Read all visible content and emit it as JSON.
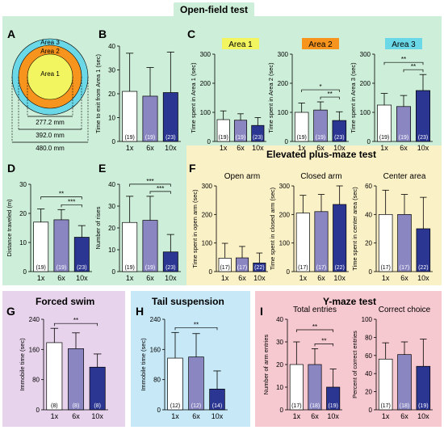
{
  "headers": {
    "open_field": "Open-field test",
    "elevated": "Elevated plus-maze test",
    "forced_swim": "Forced swim",
    "tail_suspension": "Tail suspension",
    "y_maze": "Y-maze test"
  },
  "panel_letters": [
    "A",
    "B",
    "C",
    "D",
    "E",
    "F",
    "G",
    "H",
    "I"
  ],
  "colors": {
    "open_field_bg": "#cdeed8",
    "elevated_bg": "#fbf1c7",
    "forced_swim_bg": "#e8d3ec",
    "tail_bg": "#c6e8f7",
    "ymaze_bg": "#f6c8cf",
    "bar_1x": "#ffffff",
    "bar_6x": "#8a86c2",
    "bar_10x": "#2b3592",
    "area1": "#f2f560",
    "area2": "#f7941d",
    "area3": "#6bd8e8"
  },
  "diagram": {
    "labels": [
      "Area 3",
      "Area 2",
      "Area 1"
    ],
    "dims": [
      "277.2 mm",
      "392.0 mm",
      "480.0 mm"
    ]
  },
  "chart_data": [
    {
      "id": "B",
      "type": "bar",
      "categories": [
        "1x",
        "6x",
        "10x"
      ],
      "values": [
        21,
        19,
        20.5
      ],
      "errors": [
        16,
        12,
        17
      ],
      "n": [
        "(19)",
        "(19)",
        "(23)"
      ],
      "ylabel": "Time to exit from Area 1 (sec)",
      "ylim": [
        0,
        40
      ],
      "yticks": [
        0,
        10,
        20,
        30,
        40
      ],
      "sig": []
    },
    {
      "id": "C1",
      "type": "bar",
      "title": "Area 1",
      "categories": [
        "1x",
        "6x",
        "10x"
      ],
      "values": [
        75,
        73,
        55
      ],
      "errors": [
        30,
        22,
        27
      ],
      "n": [
        "(19)",
        "(19)",
        "(23)"
      ],
      "ylabel": "Time spent in Area 1 (sec)",
      "ylim": [
        0,
        300
      ],
      "yticks": [
        0,
        100,
        200,
        300
      ],
      "sig": []
    },
    {
      "id": "C2",
      "type": "bar",
      "title": "Area 2",
      "categories": [
        "1x",
        "6x",
        "10x"
      ],
      "values": [
        100,
        108,
        72
      ],
      "errors": [
        32,
        28,
        30
      ],
      "n": [
        "(19)",
        "(19)",
        "(23)"
      ],
      "ylabel": "Time spent in Area 2 (sec)",
      "ylim": [
        0,
        300
      ],
      "yticks": [
        0,
        100,
        200,
        300
      ],
      "sig": [
        {
          "a": 0,
          "b": 2,
          "label": "*"
        },
        {
          "a": 1,
          "b": 2,
          "label": "**"
        }
      ]
    },
    {
      "id": "C3",
      "type": "bar",
      "title": "Area 3",
      "categories": [
        "1x",
        "6x",
        "10x"
      ],
      "values": [
        125,
        120,
        175
      ],
      "errors": [
        40,
        38,
        55
      ],
      "n": [
        "(19)",
        "(19)",
        "(23)"
      ],
      "ylabel": "Time spent in Area 3 (sec)",
      "ylim": [
        0,
        300
      ],
      "yticks": [
        0,
        100,
        200,
        300
      ],
      "sig": [
        {
          "a": 0,
          "b": 2,
          "label": "**"
        },
        {
          "a": 1,
          "b": 2,
          "label": "**"
        }
      ]
    },
    {
      "id": "D",
      "type": "bar",
      "categories": [
        "1x",
        "6x",
        "10x"
      ],
      "values": [
        17,
        17.8,
        11.8
      ],
      "errors": [
        4.5,
        3.5,
        4
      ],
      "n": [
        "(19)",
        "(19)",
        "(23)"
      ],
      "ylabel": "Distance traveled (m)",
      "ylim": [
        0,
        30
      ],
      "yticks": [
        0,
        10,
        20,
        30
      ],
      "sig": [
        {
          "a": 0,
          "b": 2,
          "label": "**"
        },
        {
          "a": 1,
          "b": 2,
          "label": "***"
        }
      ]
    },
    {
      "id": "E",
      "type": "bar",
      "categories": [
        "1x",
        "6x",
        "10x"
      ],
      "values": [
        22.5,
        23.5,
        9
      ],
      "errors": [
        12,
        11,
        8
      ],
      "n": [
        "(19)",
        "(19)",
        "(23)"
      ],
      "ylabel": "Number of rises",
      "ylim": [
        0,
        40
      ],
      "yticks": [
        0,
        10,
        20,
        30,
        40
      ],
      "sig": [
        {
          "a": 0,
          "b": 2,
          "label": "***"
        },
        {
          "a": 1,
          "b": 2,
          "label": "***"
        }
      ]
    },
    {
      "id": "F1",
      "type": "bar",
      "title": "Open arm",
      "categories": [
        "1x",
        "6x",
        "10x"
      ],
      "values": [
        47,
        48,
        30
      ],
      "errors": [
        52,
        40,
        35
      ],
      "n": [
        "(17)",
        "(17)",
        "(22)"
      ],
      "ylabel": "Time spent in open arm (sec)",
      "ylim": [
        0,
        300
      ],
      "yticks": [
        0,
        100,
        200,
        300
      ],
      "sig": []
    },
    {
      "id": "F2",
      "type": "bar",
      "title": "Closed arm",
      "categories": [
        "1x",
        "6x",
        "10x"
      ],
      "values": [
        205,
        210,
        235
      ],
      "errors": [
        62,
        60,
        65
      ],
      "n": [
        "(17)",
        "(17)",
        "(22)"
      ],
      "ylabel": "Time spent in closed arm (sec)",
      "ylim": [
        0,
        300
      ],
      "yticks": [
        0,
        100,
        200,
        300
      ],
      "sig": []
    },
    {
      "id": "F3",
      "type": "bar",
      "title": "Center area",
      "categories": [
        "1x",
        "6x",
        "10x"
      ],
      "values": [
        40,
        40,
        30
      ],
      "errors": [
        17,
        14,
        22
      ],
      "n": [
        "(17)",
        "(17)",
        "(22)"
      ],
      "ylabel": "Time spent in center area (sec)",
      "ylim": [
        0,
        60
      ],
      "yticks": [
        0,
        20,
        40,
        60
      ],
      "sig": []
    },
    {
      "id": "G",
      "type": "bar",
      "categories": [
        "1x",
        "6x",
        "10x"
      ],
      "values": [
        178,
        162,
        113
      ],
      "errors": [
        38,
        42,
        35
      ],
      "n": [
        "(8)",
        "(8)",
        "(8)"
      ],
      "ylabel": "Immobile time (sec)",
      "ylim": [
        0,
        240
      ],
      "yticks": [
        0,
        80,
        160,
        240
      ],
      "sig": [
        {
          "a": 0,
          "b": 2,
          "label": "**"
        }
      ]
    },
    {
      "id": "H",
      "type": "bar",
      "categories": [
        "1x",
        "6x",
        "10x"
      ],
      "values": [
        137,
        140,
        55
      ],
      "errors": [
        68,
        62,
        48
      ],
      "n": [
        "(12)",
        "(12)",
        "(14)"
      ],
      "ylabel": "Immobile time (sec)",
      "ylim": [
        0,
        240
      ],
      "yticks": [
        0,
        80,
        160,
        240
      ],
      "sig": [
        {
          "a": 0,
          "b": 2,
          "label": "**"
        }
      ]
    },
    {
      "id": "I1",
      "type": "bar",
      "title": "Total entries",
      "categories": [
        "1x",
        "6x",
        "10x"
      ],
      "values": [
        20,
        20,
        10
      ],
      "errors": [
        10,
        7,
        8
      ],
      "n": [
        "(17)",
        "(18)",
        "(19)"
      ],
      "ylabel": "Number of arm entries",
      "ylim": [
        0,
        40
      ],
      "yticks": [
        0,
        10,
        20,
        30,
        40
      ],
      "sig": [
        {
          "a": 0,
          "b": 2,
          "label": "**"
        },
        {
          "a": 1,
          "b": 2,
          "label": "**"
        }
      ]
    },
    {
      "id": "I2",
      "type": "bar",
      "title": "Correct choice",
      "categories": [
        "1x",
        "6x",
        "10x"
      ],
      "values": [
        56,
        61,
        48
      ],
      "errors": [
        18,
        14,
        30
      ],
      "n": [
        "(17)",
        "(18)",
        "(19)"
      ],
      "ylabel": "Percent of correct entries",
      "ylim": [
        0,
        100
      ],
      "yticks": [
        0,
        20,
        40,
        60,
        80,
        100
      ],
      "sig": []
    }
  ]
}
